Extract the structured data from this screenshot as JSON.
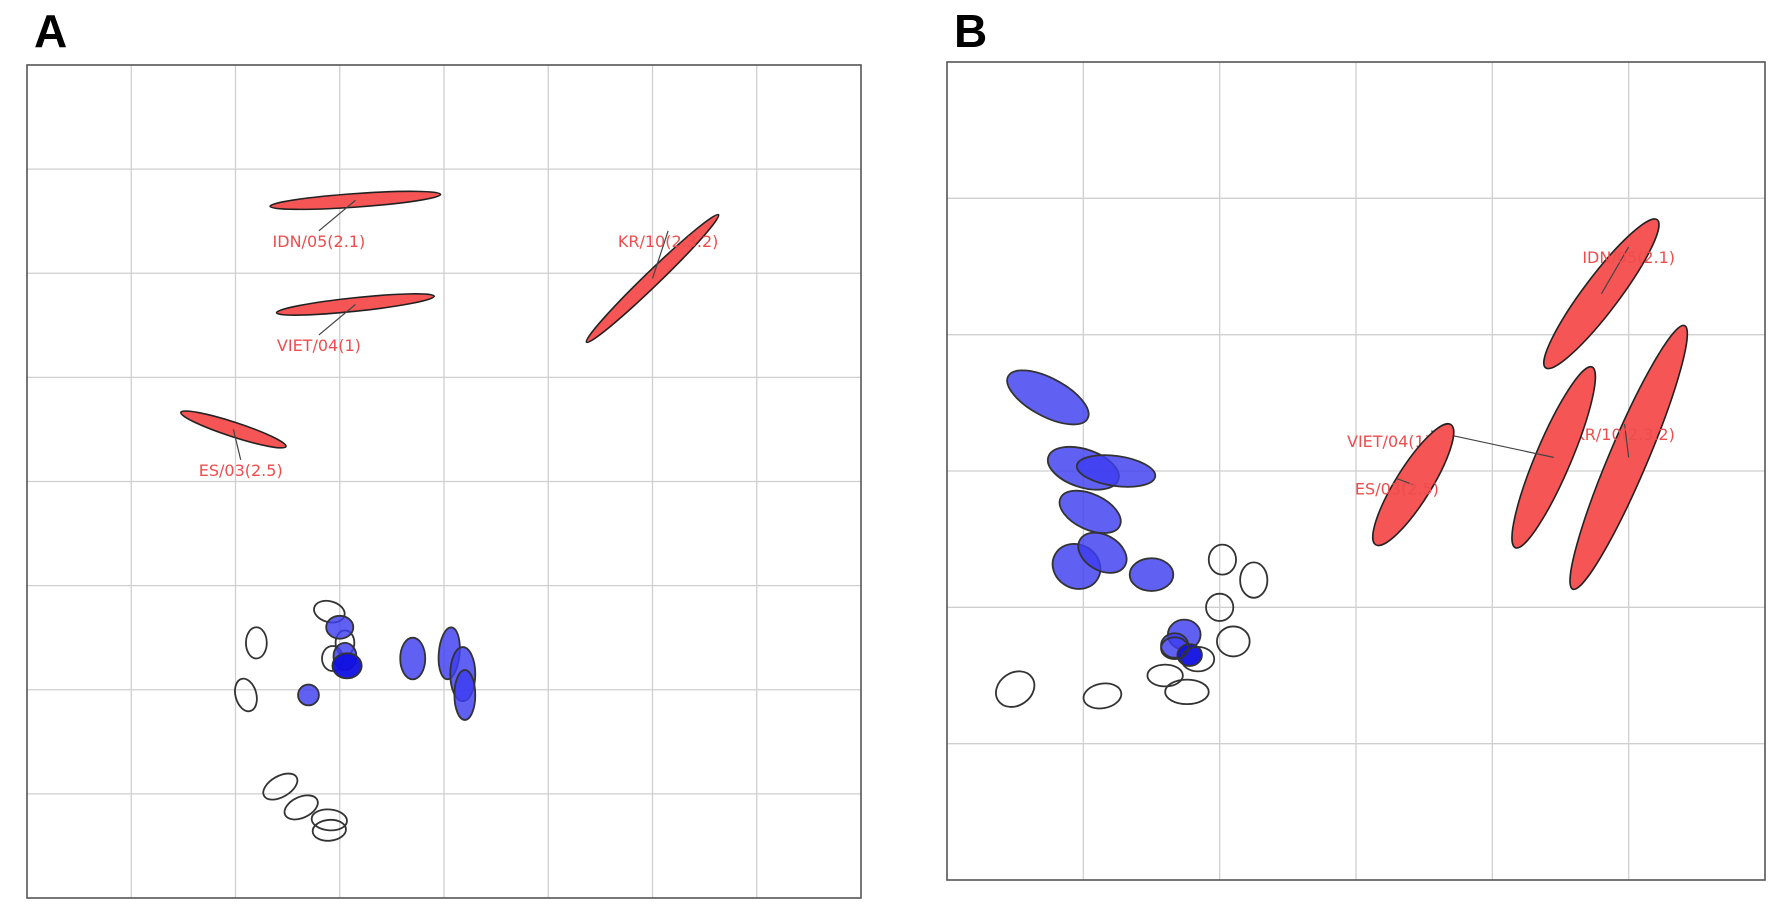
{
  "panels": [
    {
      "letter": "A"
    },
    {
      "letter": "B"
    }
  ],
  "colors": {
    "antigen": "#f55555",
    "serum_filled": "#3d3df0",
    "serum_dark": "#1010e0",
    "serum_outline": "#333333",
    "grid": "#cfcfcf",
    "label": "#ee4d4d"
  },
  "chart_data": [
    {
      "panel": "A",
      "type": "scatter",
      "title": "",
      "xlabel": "",
      "ylabel": "",
      "grid": true,
      "xlim": [
        0,
        8
      ],
      "ylim": [
        0,
        8
      ],
      "antigens": [
        {
          "label": "IDN/05(2.1)",
          "x": 3.15,
          "y": 6.7,
          "rx": 0.82,
          "ry": 0.065,
          "angle": 4,
          "label_x": 2.8,
          "label_y": 6.35
        },
        {
          "label": "KR/10(2.3.2)",
          "x": 6.0,
          "y": 5.95,
          "rx": 0.88,
          "ry": 0.07,
          "angle": 44,
          "label_x": 6.15,
          "label_y": 6.35
        },
        {
          "label": "VIET/04(1)",
          "x": 3.15,
          "y": 5.7,
          "rx": 0.76,
          "ry": 0.065,
          "angle": 6,
          "label_x": 2.8,
          "label_y": 5.35
        },
        {
          "label": "ES/03(2.5)",
          "x": 1.98,
          "y": 4.5,
          "rx": 0.53,
          "ry": 0.07,
          "angle": -18,
          "label_x": 2.05,
          "label_y": 4.15
        }
      ],
      "sera": [
        {
          "x": 2.9,
          "y": 2.75,
          "rx": 0.15,
          "ry": 0.1,
          "angle": -15,
          "style": "outline"
        },
        {
          "x": 2.2,
          "y": 2.45,
          "rx": 0.1,
          "ry": 0.15,
          "angle": 0,
          "style": "outline"
        },
        {
          "x": 2.1,
          "y": 1.95,
          "rx": 0.1,
          "ry": 0.16,
          "angle": 15,
          "style": "outline"
        },
        {
          "x": 2.43,
          "y": 1.07,
          "rx": 0.18,
          "ry": 0.1,
          "angle": 30,
          "style": "outline"
        },
        {
          "x": 2.63,
          "y": 0.87,
          "rx": 0.17,
          "ry": 0.1,
          "angle": 25,
          "style": "outline"
        },
        {
          "x": 2.9,
          "y": 0.75,
          "rx": 0.17,
          "ry": 0.1,
          "angle": -5,
          "style": "outline"
        },
        {
          "x": 2.9,
          "y": 0.65,
          "rx": 0.16,
          "ry": 0.1,
          "angle": 5,
          "style": "outline"
        },
        {
          "x": 3.05,
          "y": 2.45,
          "rx": 0.09,
          "ry": 0.12,
          "angle": 0,
          "style": "outline"
        },
        {
          "x": 2.93,
          "y": 2.3,
          "rx": 0.1,
          "ry": 0.12,
          "angle": 0,
          "style": "outline"
        },
        {
          "x": 3.0,
          "y": 2.6,
          "rx": 0.13,
          "ry": 0.11,
          "angle": 0,
          "style": "filled"
        },
        {
          "x": 3.05,
          "y": 2.32,
          "rx": 0.11,
          "ry": 0.13,
          "angle": 0,
          "style": "filled"
        },
        {
          "x": 3.07,
          "y": 2.23,
          "rx": 0.14,
          "ry": 0.12,
          "angle": 0,
          "style": "dark"
        },
        {
          "x": 2.7,
          "y": 1.95,
          "rx": 0.1,
          "ry": 0.1,
          "angle": 0,
          "style": "filled"
        },
        {
          "x": 3.7,
          "y": 2.3,
          "rx": 0.12,
          "ry": 0.2,
          "angle": 0,
          "style": "filled"
        },
        {
          "x": 4.05,
          "y": 2.35,
          "rx": 0.1,
          "ry": 0.25,
          "angle": -5,
          "style": "filled"
        },
        {
          "x": 4.18,
          "y": 2.15,
          "rx": 0.12,
          "ry": 0.26,
          "angle": 0,
          "style": "filled"
        },
        {
          "x": 4.2,
          "y": 1.95,
          "rx": 0.1,
          "ry": 0.24,
          "angle": 0,
          "style": "filled"
        }
      ]
    },
    {
      "panel": "B",
      "type": "scatter",
      "title": "",
      "xlabel": "",
      "ylabel": "",
      "grid": true,
      "xlim": [
        0,
        6
      ],
      "ylim": [
        0,
        6
      ],
      "antigens": [
        {
          "label": "IDN/05(2.1)",
          "x": 4.8,
          "y": 4.3,
          "rx": 0.68,
          "ry": 0.13,
          "angle": 53,
          "label_x": 5.0,
          "label_y": 4.6
        },
        {
          "label": "KR/10(2.3.2)",
          "x": 5.0,
          "y": 3.1,
          "rx": 1.05,
          "ry": 0.14,
          "angle": 67,
          "label_x": 4.97,
          "label_y": 3.3
        },
        {
          "label": "VIET/04(1)",
          "x": 4.45,
          "y": 3.1,
          "rx": 0.72,
          "ry": 0.13,
          "angle": 67,
          "label_x": 3.55,
          "label_y": 3.25
        },
        {
          "label": "ES/03(2.5)",
          "x": 3.42,
          "y": 2.9,
          "rx": 0.52,
          "ry": 0.13,
          "angle": 58,
          "label_x": 3.3,
          "label_y": 2.9
        }
      ],
      "sera": [
        {
          "x": 0.74,
          "y": 3.54,
          "rx": 0.33,
          "ry": 0.14,
          "angle": -28,
          "style": "filled"
        },
        {
          "x": 1.0,
          "y": 3.02,
          "rx": 0.27,
          "ry": 0.14,
          "angle": -18,
          "style": "filled"
        },
        {
          "x": 1.24,
          "y": 3.0,
          "rx": 0.29,
          "ry": 0.11,
          "angle": -8,
          "style": "filled"
        },
        {
          "x": 1.05,
          "y": 2.7,
          "rx": 0.24,
          "ry": 0.13,
          "angle": -25,
          "style": "filled"
        },
        {
          "x": 0.95,
          "y": 2.3,
          "rx": 0.18,
          "ry": 0.16,
          "angle": -30,
          "style": "filled"
        },
        {
          "x": 1.14,
          "y": 2.4,
          "rx": 0.19,
          "ry": 0.13,
          "angle": -30,
          "style": "filled"
        },
        {
          "x": 1.5,
          "y": 2.24,
          "rx": 0.16,
          "ry": 0.12,
          "angle": 0,
          "style": "filled"
        },
        {
          "x": 1.74,
          "y": 1.8,
          "rx": 0.12,
          "ry": 0.11,
          "angle": 0,
          "style": "filled"
        },
        {
          "x": 1.67,
          "y": 1.72,
          "rx": 0.1,
          "ry": 0.09,
          "angle": 0,
          "style": "filled"
        },
        {
          "x": 1.78,
          "y": 1.65,
          "rx": 0.09,
          "ry": 0.08,
          "angle": 0,
          "style": "dark"
        },
        {
          "x": 2.02,
          "y": 2.35,
          "rx": 0.1,
          "ry": 0.11,
          "angle": 0,
          "style": "outline"
        },
        {
          "x": 2.25,
          "y": 2.2,
          "rx": 0.1,
          "ry": 0.13,
          "angle": 0,
          "style": "outline"
        },
        {
          "x": 2.0,
          "y": 2.0,
          "rx": 0.1,
          "ry": 0.1,
          "angle": 0,
          "style": "outline"
        },
        {
          "x": 2.1,
          "y": 1.75,
          "rx": 0.12,
          "ry": 0.11,
          "angle": 0,
          "style": "outline"
        },
        {
          "x": 1.84,
          "y": 1.62,
          "rx": 0.12,
          "ry": 0.09,
          "angle": 0,
          "style": "outline"
        },
        {
          "x": 1.67,
          "y": 1.7,
          "rx": 0.1,
          "ry": 0.08,
          "angle": 0,
          "style": "outline"
        },
        {
          "x": 1.6,
          "y": 1.5,
          "rx": 0.13,
          "ry": 0.08,
          "angle": 0,
          "style": "outline"
        },
        {
          "x": 1.76,
          "y": 1.38,
          "rx": 0.16,
          "ry": 0.09,
          "angle": 0,
          "style": "outline"
        },
        {
          "x": 0.5,
          "y": 1.4,
          "rx": 0.15,
          "ry": 0.12,
          "angle": 35,
          "style": "outline"
        },
        {
          "x": 1.14,
          "y": 1.35,
          "rx": 0.14,
          "ry": 0.09,
          "angle": 10,
          "style": "outline"
        }
      ]
    }
  ]
}
